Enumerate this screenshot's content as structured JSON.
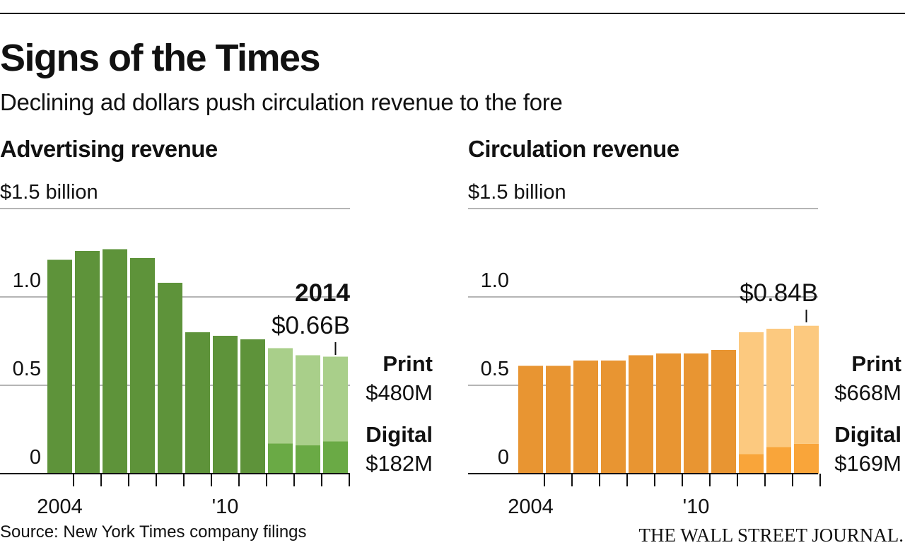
{
  "header": {
    "title": "Signs of the Times",
    "subtitle": "Declining ad dollars push circulation revenue to the fore"
  },
  "chart_data": [
    {
      "type": "bar",
      "title": "Advertising revenue",
      "categories": [
        "2004",
        null,
        null,
        null,
        null,
        null,
        "'10",
        null,
        null,
        null,
        null
      ],
      "values": [
        1.21,
        1.26,
        1.27,
        1.22,
        1.08,
        0.8,
        0.78,
        0.76,
        null,
        null,
        null
      ],
      "color": "#5e933a",
      "series": [
        {
          "name": "Print",
          "color": "#a9cf8a",
          "values": [
            null,
            null,
            null,
            null,
            null,
            null,
            null,
            null,
            0.54,
            0.51,
            0.48
          ],
          "value_labels": [
            null,
            null,
            null,
            null,
            null,
            null,
            null,
            null,
            null,
            null,
            "$480M"
          ]
        },
        {
          "name": "Digital",
          "color": "#6aaa45",
          "values": [
            null,
            null,
            null,
            null,
            null,
            null,
            null,
            null,
            0.17,
            0.16,
            0.182
          ],
          "value_labels": [
            null,
            null,
            null,
            null,
            null,
            null,
            null,
            null,
            null,
            null,
            "$182M"
          ]
        }
      ],
      "annotation": {
        "heading": "2014",
        "text": "$0.66B"
      },
      "ylim": [
        0,
        1.5
      ],
      "yticks": [
        0,
        0.5,
        {
          "value": 1,
          "label": "1.0"
        },
        {
          "value": 1.5,
          "label": "$1.5 billion"
        }
      ],
      "grid": true
    },
    {
      "type": "bar",
      "title": "Circulation revenue",
      "categories": [
        "2004",
        null,
        null,
        null,
        null,
        null,
        "'10",
        null,
        null,
        null,
        null
      ],
      "values": [
        0.61,
        0.61,
        0.64,
        0.64,
        0.67,
        0.68,
        0.68,
        0.7,
        null,
        null,
        null
      ],
      "color": "#e89532",
      "series": [
        {
          "name": "Print",
          "color": "#fcc97f",
          "values": [
            null,
            null,
            null,
            null,
            null,
            null,
            null,
            null,
            0.69,
            0.67,
            0.668
          ],
          "value_labels": [
            null,
            null,
            null,
            null,
            null,
            null,
            null,
            null,
            null,
            null,
            "$668M"
          ]
        },
        {
          "name": "Digital",
          "color": "#f9a53a",
          "values": [
            null,
            null,
            null,
            null,
            null,
            null,
            null,
            null,
            0.11,
            0.15,
            0.169
          ],
          "value_labels": [
            null,
            null,
            null,
            null,
            null,
            null,
            null,
            null,
            null,
            null,
            "$169M"
          ]
        }
      ],
      "annotation": {
        "text": "$0.84B"
      },
      "ylim": [
        0,
        1.5
      ],
      "yticks": [
        0,
        0.5,
        {
          "value": 1,
          "label": "1.0"
        },
        {
          "value": 1.5,
          "label": "$1.5 billion"
        }
      ],
      "grid": true
    }
  ],
  "footer": {
    "source": "Source: New York Times company filings",
    "brand": "THE WALL STREET JOURNAL."
  }
}
